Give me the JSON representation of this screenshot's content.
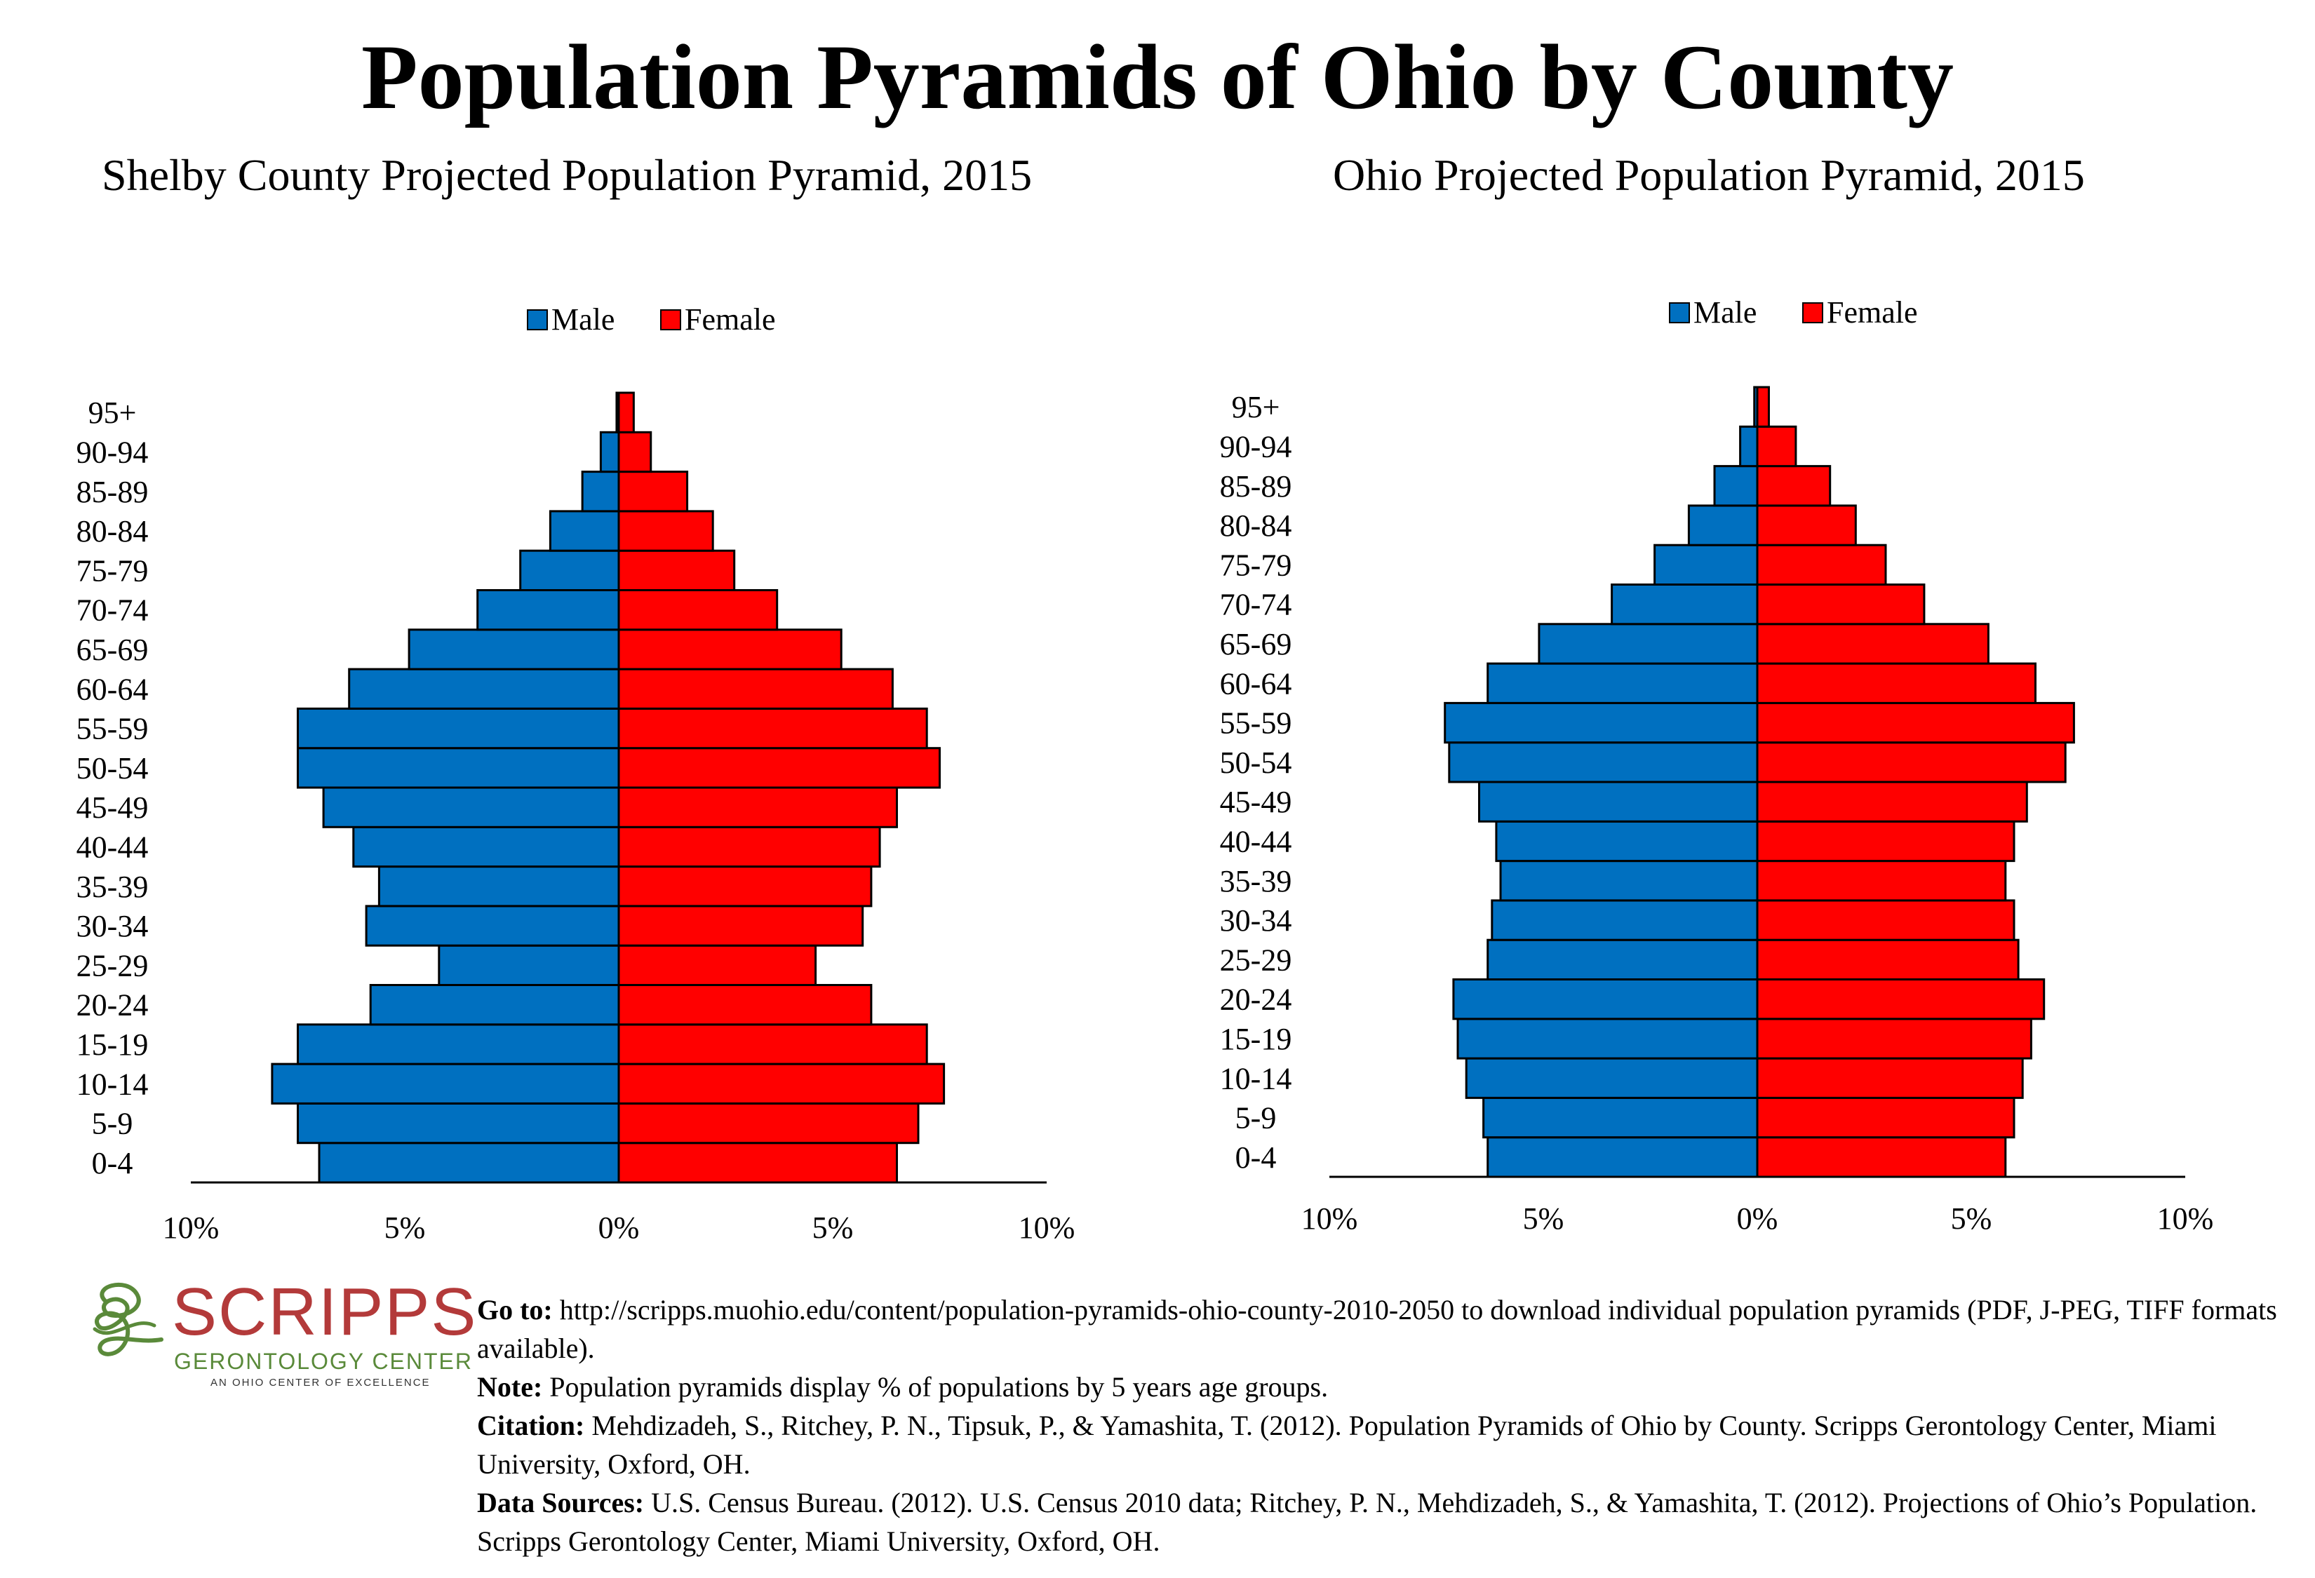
{
  "title": "Population Pyramids of Ohio by County",
  "colors": {
    "male": "#0070c0",
    "female": "#ff0000",
    "logo_red": "#b33a3a",
    "logo_green": "#5a8a3a"
  },
  "chart_data": [
    {
      "type": "bar",
      "title": "Shelby County Projected Population Pyramid, 2015",
      "legend": [
        "Male",
        "Female"
      ],
      "legend_position": "top-center",
      "age_groups": [
        "0-4",
        "5-9",
        "10-14",
        "15-19",
        "20-24",
        "25-29",
        "30-34",
        "35-39",
        "40-44",
        "45-49",
        "50-54",
        "55-59",
        "60-64",
        "65-69",
        "70-74",
        "75-79",
        "80-84",
        "85-89",
        "90-94",
        "95+"
      ],
      "series": [
        {
          "name": "Male",
          "values": [
            7.0,
            7.5,
            8.1,
            7.5,
            5.8,
            4.2,
            5.9,
            5.6,
            6.2,
            6.9,
            7.5,
            7.5,
            6.3,
            4.9,
            3.3,
            2.3,
            1.6,
            0.85,
            0.42,
            0.05
          ]
        },
        {
          "name": "Female",
          "values": [
            6.5,
            7.0,
            7.6,
            7.2,
            5.9,
            4.6,
            5.7,
            5.9,
            6.1,
            6.5,
            7.5,
            7.2,
            6.4,
            5.2,
            3.7,
            2.7,
            2.2,
            1.6,
            0.75,
            0.35
          ]
        }
      ],
      "x_ticks": [
        "10%",
        "5%",
        "0%",
        "5%",
        "10%"
      ],
      "xlim": [
        -10,
        10
      ],
      "grid": false
    },
    {
      "type": "bar",
      "title": "Ohio Projected Population Pyramid, 2015",
      "legend": [
        "Male",
        "Female"
      ],
      "legend_position": "top-center",
      "age_groups": [
        "0-4",
        "5-9",
        "10-14",
        "15-19",
        "20-24",
        "25-29",
        "30-34",
        "35-39",
        "40-44",
        "45-49",
        "50-54",
        "55-59",
        "60-64",
        "65-69",
        "70-74",
        "75-79",
        "80-84",
        "85-89",
        "90-94",
        "95+"
      ],
      "series": [
        {
          "name": "Male",
          "values": [
            6.3,
            6.4,
            6.8,
            7.0,
            7.1,
            6.3,
            6.2,
            6.0,
            6.1,
            6.5,
            7.2,
            7.3,
            6.3,
            5.1,
            3.4,
            2.4,
            1.6,
            1.0,
            0.4,
            0.07
          ]
        },
        {
          "name": "Female",
          "values": [
            5.8,
            6.0,
            6.2,
            6.4,
            6.7,
            6.1,
            6.0,
            5.8,
            6.0,
            6.3,
            7.2,
            7.4,
            6.5,
            5.4,
            3.9,
            3.0,
            2.3,
            1.7,
            0.9,
            0.27
          ]
        }
      ],
      "x_ticks": [
        "10%",
        "5%",
        "0%",
        "5%",
        "10%"
      ],
      "xlim": [
        -10,
        10
      ],
      "grid": false
    }
  ],
  "logo": {
    "name": "SCRIPPS",
    "subtitle": "GERONTOLOGY CENTER",
    "tagline": "AN OHIO CENTER OF EXCELLENCE"
  },
  "notes": {
    "goto_label": "Go to:",
    "goto_text": " http://scripps.muohio.edu/content/population-pyramids-ohio-county-2010-2050 to download individual population pyramids (PDF, J-PEG, TIFF formats available).",
    "note_label": "Note:",
    "note_text": " Population pyramids display % of populations by 5 years age groups.",
    "citation_label": "Citation:",
    "citation_text": " Mehdizadeh, S., Ritchey, P. N., Tipsuk, P., & Yamashita, T. (2012). Population Pyramids of Ohio by County. Scripps Gerontology Center, Miami University, Oxford, OH.",
    "sources_label": "Data Sources:",
    "sources_text": " U.S. Census Bureau. (2012). U.S. Census 2010 data; Ritchey, P. N., Mehdizadeh, S., & Yamashita, T. (2012). Projections of Ohio’s Population. Scripps Gerontology Center, Miami University, Oxford, OH."
  }
}
